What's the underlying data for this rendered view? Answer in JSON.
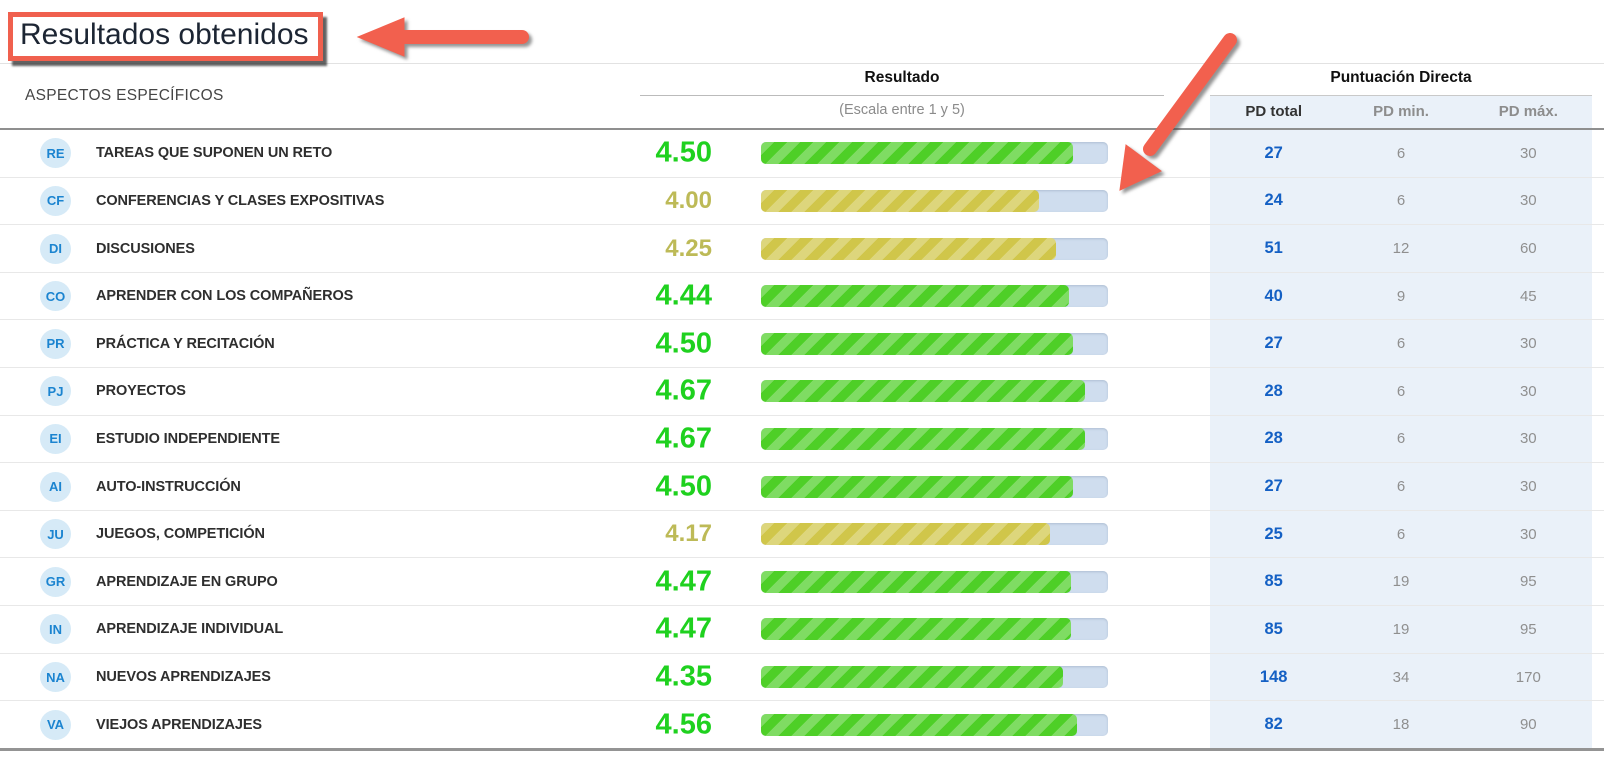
{
  "page": {
    "title": "Resultados obtenidos"
  },
  "colors": {
    "accent_red": "#f2604e",
    "score_green": "#1fd11f",
    "score_yellow": "#bdba57",
    "bar_green": "#4ecf27",
    "bar_yellow": "#d0c64a",
    "bar_track": "#cfddee",
    "pd_background": "#eaf1f9",
    "pd_total_blue": "#1460c4",
    "badge_background": "#d6eaf7",
    "badge_text": "#1b84d0"
  },
  "icons": {
    "title_arrow": "red-arrow-left",
    "bar_arrow": "red-arrow-diagonal-down-left"
  },
  "table": {
    "col_aspects": "ASPECTOS ESPECÍFICOS",
    "col_result": "Resultado",
    "col_result_sub": "(Escala entre 1 y 5)",
    "col_pd_group": "Puntuación Directa",
    "col_pd_total": "PD total",
    "col_pd_min": "PD min.",
    "col_pd_max": "PD máx.",
    "scale_min": 1,
    "scale_max": 5,
    "rows": [
      {
        "code": "RE",
        "label": "TAREAS QUE SUPONEN UN RETO",
        "score": "4.50",
        "level": "green",
        "pd_total": "27",
        "pd_min": "6",
        "pd_max": "30"
      },
      {
        "code": "CF",
        "label": "CONFERENCIAS Y CLASES EXPOSITIVAS",
        "score": "4.00",
        "level": "yellow",
        "pd_total": "24",
        "pd_min": "6",
        "pd_max": "30"
      },
      {
        "code": "DI",
        "label": "DISCUSIONES",
        "score": "4.25",
        "level": "yellow",
        "pd_total": "51",
        "pd_min": "12",
        "pd_max": "60"
      },
      {
        "code": "CO",
        "label": "APRENDER CON LOS COMPAÑEROS",
        "score": "4.44",
        "level": "green",
        "pd_total": "40",
        "pd_min": "9",
        "pd_max": "45"
      },
      {
        "code": "PR",
        "label": "PRÁCTICA Y RECITACIÓN",
        "score": "4.50",
        "level": "green",
        "pd_total": "27",
        "pd_min": "6",
        "pd_max": "30"
      },
      {
        "code": "PJ",
        "label": "PROYECTOS",
        "score": "4.67",
        "level": "green",
        "pd_total": "28",
        "pd_min": "6",
        "pd_max": "30"
      },
      {
        "code": "EI",
        "label": "ESTUDIO INDEPENDIENTE",
        "score": "4.67",
        "level": "green",
        "pd_total": "28",
        "pd_min": "6",
        "pd_max": "30"
      },
      {
        "code": "AI",
        "label": "AUTO-INSTRUCCIÓN",
        "score": "4.50",
        "level": "green",
        "pd_total": "27",
        "pd_min": "6",
        "pd_max": "30"
      },
      {
        "code": "JU",
        "label": "JUEGOS, COMPETICIÓN",
        "score": "4.17",
        "level": "yellow",
        "pd_total": "25",
        "pd_min": "6",
        "pd_max": "30"
      },
      {
        "code": "GR",
        "label": "APRENDIZAJE EN GRUPO",
        "score": "4.47",
        "level": "green",
        "pd_total": "85",
        "pd_min": "19",
        "pd_max": "95"
      },
      {
        "code": "IN",
        "label": "APRENDIZAJE INDIVIDUAL",
        "score": "4.47",
        "level": "green",
        "pd_total": "85",
        "pd_min": "19",
        "pd_max": "95"
      },
      {
        "code": "NA",
        "label": "NUEVOS APRENDIZAJES",
        "score": "4.35",
        "level": "green",
        "pd_total": "148",
        "pd_min": "34",
        "pd_max": "170"
      },
      {
        "code": "VA",
        "label": "VIEJOS APRENDIZAJES",
        "score": "4.56",
        "level": "green",
        "pd_total": "82",
        "pd_min": "18",
        "pd_max": "90"
      }
    ]
  },
  "chart_data": {
    "type": "bar",
    "title": "Resultados obtenidos",
    "xlabel": "Resultado (Escala entre 1 y 5)",
    "ylabel": "",
    "scale": [
      1,
      5
    ],
    "legend": false,
    "categories": [
      "TAREAS QUE SUPONEN UN RETO",
      "CONFERENCIAS Y CLASES EXPOSITIVAS",
      "DISCUSIONES",
      "APRENDER CON LOS COMPAÑEROS",
      "PRÁCTICA Y RECITACIÓN",
      "PROYECTOS",
      "ESTUDIO INDEPENDIENTE",
      "AUTO-INSTRUCCIÓN",
      "JUEGOS, COMPETICIÓN",
      "APRENDIZAJE EN GRUPO",
      "APRENDIZAJE INDIVIDUAL",
      "NUEVOS APRENDIZAJES",
      "VIEJOS APRENDIZAJES"
    ],
    "values": [
      4.5,
      4.0,
      4.25,
      4.44,
      4.5,
      4.67,
      4.67,
      4.5,
      4.17,
      4.47,
      4.47,
      4.35,
      4.56
    ]
  }
}
